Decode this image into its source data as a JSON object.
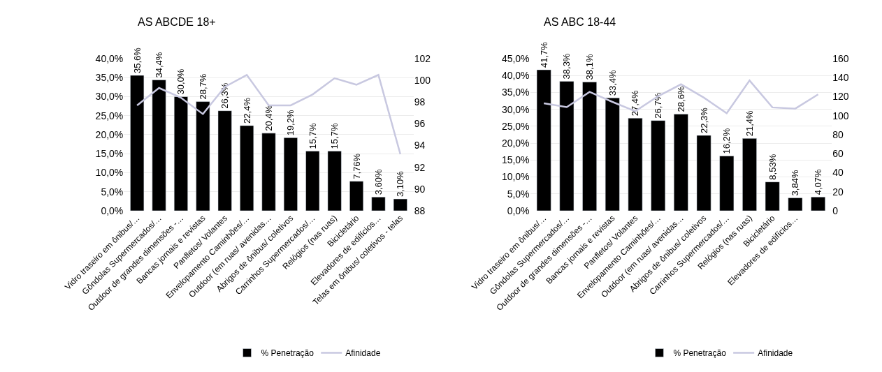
{
  "chart_data": [
    {
      "type": "bar",
      "title": "AS ABCDE 18+",
      "categories": [
        "Vidro traseiro em ônibus/…",
        "Gôndolas Supermercados/…",
        "Outdoor de grandes dimensões -…",
        "Bancas jornais e revistas",
        "Panfletos/ Volantes",
        "Envelopamento Caminhões/…",
        "Outdoor (em ruas/ avenidas…",
        "Abrigos de ônibus/ coletivos",
        "Carrinhos Supermercados/…",
        "Relógios (nas ruas)",
        "Bicicletário",
        "Elevadores de edifícios…",
        "Telas em ônibus/ coletivos - telas"
      ],
      "series": [
        {
          "name": "% Penetração",
          "color": "#000000",
          "values": [
            35.6,
            34.4,
            30.0,
            28.7,
            26.3,
            22.4,
            20.4,
            19.2,
            15.7,
            15.7,
            7.76,
            3.6,
            3.1
          ],
          "value_labels": [
            "35,6%",
            "34,4%",
            "30,0%",
            "28,7%",
            "26,3%",
            "22,4%",
            "20,4%",
            "19,2%",
            "15,7%",
            "15,7%",
            "7,76%",
            "3,60%",
            "3,10%"
          ]
        },
        {
          "name": "Afinidade",
          "type": "line",
          "axis": "y2",
          "color": "#c8c8e0",
          "values": [
            97.7,
            99.3,
            98.4,
            96.9,
            99.4,
            100.5,
            97.7,
            97.7,
            98.7,
            100.2,
            99.6,
            100.5,
            93.2
          ]
        }
      ],
      "ylim": [
        0,
        40
      ],
      "yticks": [
        {
          "value": 0,
          "label": "0,0%"
        },
        {
          "value": 5,
          "label": "5,0%"
        },
        {
          "value": 10,
          "label": "10,0%"
        },
        {
          "value": 15,
          "label": "15,0%"
        },
        {
          "value": 20,
          "label": "20,0%"
        },
        {
          "value": 25,
          "label": "25,0%"
        },
        {
          "value": 30,
          "label": "30,0%"
        },
        {
          "value": 35,
          "label": "35,0%"
        },
        {
          "value": 40,
          "label": "40,0%"
        }
      ],
      "y2lim": [
        88,
        102
      ],
      "y2ticks": [
        88,
        90,
        92,
        94,
        96,
        98,
        100,
        102
      ],
      "grid": "y",
      "legend": "bottom",
      "marker": "none",
      "line_style": "solid"
    },
    {
      "type": "bar",
      "title": "AS ABC 18-44",
      "categories": [
        "Vidro traseiro em ônibus/…",
        "Gôndolas Supermercados/…",
        "Outdoor de grandes dimensões -…",
        "Bancas jornais e revistas",
        "Panfletos/ Volantes",
        "Envelopamento Caminhões/…",
        "Outdoor (em ruas/ avenidas…",
        "Abrigos de ônibus/ coletivos",
        "Carrinhos Supermercados/…",
        "Relógios (nas ruas)",
        "Bicicletário",
        "Elevadores de edifícios…",
        null
      ],
      "series": [
        {
          "name": "% Penetração",
          "color": "#000000",
          "values": [
            41.7,
            38.3,
            38.1,
            33.4,
            27.4,
            26.7,
            28.6,
            22.3,
            16.2,
            21.4,
            8.53,
            3.84,
            4.07
          ],
          "value_labels": [
            "41,7%",
            "38,3%",
            "38,1%",
            "33,4%",
            "27,4%",
            "26,7%",
            "28,6%",
            "22,3%",
            "16,2%",
            "21,4%",
            "8,53%",
            "3,84%",
            "4,07%"
          ]
        },
        {
          "name": "Afinidade",
          "type": "line",
          "axis": "y2",
          "color": "#c8c8e0",
          "values": [
            113,
            109,
            125,
            114.5,
            104.7,
            120.5,
            133,
            119,
            102.6,
            137,
            108.7,
            107.4,
            122.4
          ]
        }
      ],
      "ylim": [
        0,
        45
      ],
      "yticks": [
        {
          "value": 0,
          "label": "0,0%"
        },
        {
          "value": 5,
          "label": "5,0%"
        },
        {
          "value": 10,
          "label": "10,0%"
        },
        {
          "value": 15,
          "label": "15,0%"
        },
        {
          "value": 20,
          "label": "20,0%"
        },
        {
          "value": 25,
          "label": "25,0%"
        },
        {
          "value": 30,
          "label": "30,0%"
        },
        {
          "value": 35,
          "label": "35,0%"
        },
        {
          "value": 40,
          "label": "40,0%"
        },
        {
          "value": 45,
          "label": "45,0%"
        }
      ],
      "y2lim": [
        0,
        160
      ],
      "y2ticks": [
        0,
        20,
        40,
        60,
        80,
        100,
        120,
        140,
        160
      ],
      "grid": "y",
      "legend": "bottom",
      "marker": "none",
      "line_style": "solid"
    }
  ]
}
